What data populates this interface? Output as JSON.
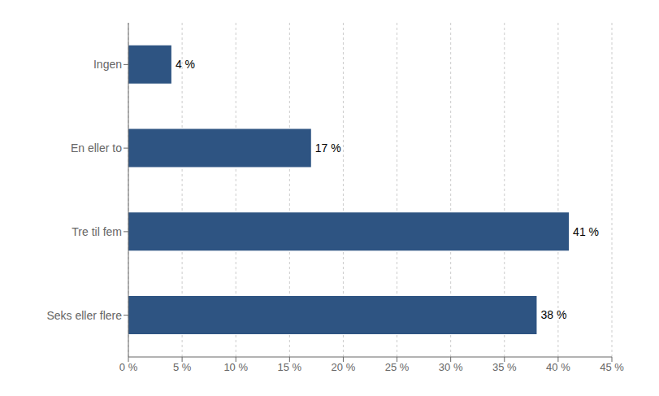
{
  "chart_data": {
    "type": "bar",
    "orientation": "horizontal",
    "categories": [
      "Ingen",
      "En eller to",
      "Tre til fem",
      "Seks eller flere"
    ],
    "values": [
      4,
      17,
      41,
      38
    ],
    "value_labels": [
      "4 %",
      "17 %",
      "41 %",
      "38 %"
    ],
    "color": "#2E5482",
    "xlim": [
      0,
      45
    ],
    "xticks": [
      {
        "value": 0,
        "label": "0 %"
      },
      {
        "value": 5,
        "label": "5 %"
      },
      {
        "value": 10,
        "label": "10 %"
      },
      {
        "value": 15,
        "label": "15 %"
      },
      {
        "value": 20,
        "label": "20 %"
      },
      {
        "value": 25,
        "label": "25 %"
      },
      {
        "value": 30,
        "label": "30 %"
      },
      {
        "value": 35,
        "label": "35 %"
      },
      {
        "value": 40,
        "label": "40 %"
      },
      {
        "value": 45,
        "label": "45 %"
      }
    ],
    "grid": true,
    "data_labels": true
  }
}
